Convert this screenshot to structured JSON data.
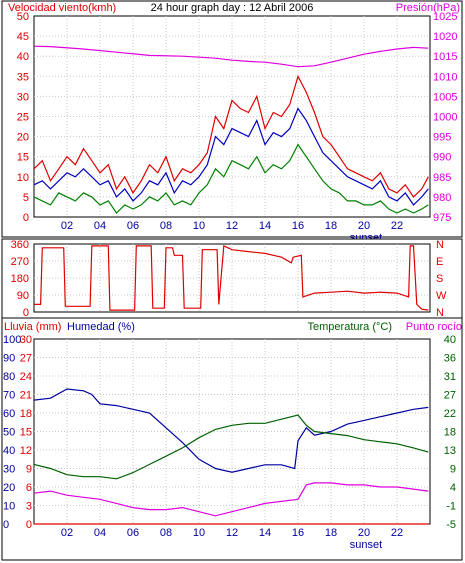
{
  "chart_data": [
    {
      "type": "line",
      "title": "24 hour graph day : 12 Abril 2006",
      "y_left_label": "Velocidad viento(kmh)",
      "y_right_label": "Presión(hPa)",
      "y_left_ticks": [
        "0",
        "5",
        "10",
        "15",
        "20",
        "25",
        "30",
        "35",
        "40",
        "45",
        "50"
      ],
      "y_right_ticks": [
        "975",
        "980",
        "985",
        "990",
        "995",
        "1000",
        "1005",
        "1010",
        "1015",
        "1020",
        "1025"
      ],
      "ylim_left": [
        0,
        50
      ],
      "ylim_right": [
        975,
        1025
      ],
      "x_ticks": [
        "02",
        "04",
        "06",
        "08",
        "10",
        "12",
        "14",
        "16",
        "18",
        "20",
        "22"
      ],
      "x_marker": "sunset",
      "xlim": [
        0,
        24
      ],
      "grid": true,
      "series": [
        {
          "axis": "right",
          "color": "#e000e0",
          "x": [
            0,
            1,
            3,
            5,
            7,
            9,
            11,
            12,
            13,
            14,
            15,
            16,
            17,
            18,
            19,
            20,
            21,
            22,
            23,
            23.9
          ],
          "values": [
            1017.5,
            1017.4,
            1016.8,
            1016,
            1015.2,
            1015,
            1014.5,
            1014,
            1013.7,
            1013.5,
            1013,
            1012.4,
            1012.6,
            1013.5,
            1014.5,
            1015.5,
            1016.2,
            1016.8,
            1017.2,
            1017
          ]
        },
        {
          "axis": "left",
          "color": "#e00000",
          "x": [
            0,
            0.5,
            1,
            1.5,
            2,
            2.5,
            3,
            3.5,
            4,
            4.5,
            5,
            5.5,
            6,
            6.5,
            7,
            7.5,
            8,
            8.5,
            9,
            9.5,
            10,
            10.5,
            11,
            11.5,
            12,
            12.5,
            13,
            13.5,
            14,
            14.5,
            15,
            15.5,
            16,
            16.5,
            17,
            17.5,
            18,
            18.5,
            19,
            19.5,
            20,
            20.5,
            21,
            21.5,
            22,
            22.5,
            23,
            23.5,
            23.9
          ],
          "values": [
            12,
            14,
            9,
            12,
            15,
            13,
            17,
            14,
            11,
            13,
            7,
            10,
            6,
            9,
            13,
            11,
            15,
            9,
            12,
            11,
            13,
            16,
            25,
            22,
            29,
            27,
            26,
            30,
            22,
            26,
            25,
            28,
            35,
            31,
            26,
            20,
            18,
            15,
            12,
            11,
            10,
            9,
            11,
            7,
            6,
            8,
            5,
            7,
            10
          ]
        },
        {
          "axis": "left",
          "color": "#0000c0",
          "x": [
            0,
            0.5,
            1,
            1.5,
            2,
            2.5,
            3,
            3.5,
            4,
            4.5,
            5,
            5.5,
            6,
            6.5,
            7,
            7.5,
            8,
            8.5,
            9,
            9.5,
            10,
            10.5,
            11,
            11.5,
            12,
            12.5,
            13,
            13.5,
            14,
            14.5,
            15,
            15.5,
            16,
            16.5,
            17,
            17.5,
            18,
            18.5,
            19,
            19.5,
            20,
            20.5,
            21,
            21.5,
            22,
            22.5,
            23,
            23.5,
            23.9
          ],
          "values": [
            8,
            9,
            7,
            9,
            11,
            10,
            12,
            10,
            8,
            9,
            5,
            7,
            4,
            6,
            9,
            8,
            11,
            6,
            9,
            8,
            10,
            13,
            20,
            18,
            22,
            21,
            20,
            24,
            18,
            21,
            20,
            22,
            27,
            24,
            20,
            16,
            14,
            12,
            10,
            9,
            8,
            7,
            9,
            5,
            4,
            6,
            3,
            5,
            7
          ]
        },
        {
          "axis": "left",
          "color": "#008000",
          "x": [
            0,
            0.5,
            1,
            1.5,
            2,
            2.5,
            3,
            3.5,
            4,
            4.5,
            5,
            5.5,
            6,
            6.5,
            7,
            7.5,
            8,
            8.5,
            9,
            9.5,
            10,
            10.5,
            11,
            11.5,
            12,
            12.5,
            13,
            13.5,
            14,
            14.5,
            15,
            15.5,
            16,
            16.5,
            17,
            17.5,
            18,
            18.5,
            19,
            19.5,
            20,
            20.5,
            21,
            21.5,
            22,
            22.5,
            23,
            23.5,
            23.9
          ],
          "values": [
            5,
            4,
            3,
            6,
            5,
            4,
            6,
            5,
            3,
            4,
            1,
            3,
            2,
            3,
            5,
            4,
            6,
            3,
            4,
            3,
            6,
            8,
            12,
            10,
            14,
            13,
            12,
            15,
            11,
            13,
            12,
            14,
            18,
            15,
            12,
            9,
            7,
            6,
            4,
            4,
            3,
            3,
            4,
            2,
            1,
            2,
            1,
            2,
            3
          ]
        }
      ]
    },
    {
      "type": "line",
      "y_left_ticks": [
        "0",
        "90",
        "180",
        "270",
        "360"
      ],
      "y_right_ticks": [
        "N",
        "W",
        "S",
        "E",
        "N"
      ],
      "ylim": [
        0,
        360
      ],
      "xlim": [
        0,
        24
      ],
      "grid": true,
      "series": [
        {
          "color": "#e00000",
          "x": [
            0,
            0.4,
            0.5,
            1.8,
            1.9,
            3.4,
            3.5,
            4.5,
            4.6,
            6.1,
            6.2,
            7.1,
            7.2,
            7.9,
            8.0,
            8.4,
            8.5,
            9.0,
            9.1,
            10.1,
            10.2,
            11.1,
            11.2,
            11.5,
            12.0,
            13.0,
            14.0,
            15.0,
            15.6,
            15.7,
            16.2,
            16.3,
            17.0,
            18.0,
            19.0,
            20.0,
            21.0,
            22.0,
            22.7,
            22.8,
            23.0,
            23.2,
            23.5,
            23.9
          ],
          "values": [
            40,
            40,
            340,
            340,
            30,
            30,
            350,
            350,
            10,
            10,
            350,
            350,
            20,
            20,
            340,
            340,
            300,
            300,
            20,
            20,
            330,
            330,
            40,
            350,
            330,
            320,
            310,
            290,
            260,
            290,
            300,
            80,
            100,
            105,
            110,
            100,
            105,
            100,
            80,
            350,
            350,
            40,
            15,
            10
          ]
        }
      ]
    },
    {
      "type": "line",
      "y_left_label": "Lluvia (mm)",
      "y_left2_label": "Humedad (%)",
      "y_right_label": "Temperatura (°C)",
      "y_right2_label": "Punto rocío",
      "y_rain_ticks": [
        "0",
        "3",
        "6",
        "9",
        "12",
        "15",
        "18",
        "21",
        "24",
        "27",
        "30"
      ],
      "y_hum_ticks": [
        "0",
        "10",
        "20",
        "30",
        "40",
        "50",
        "60",
        "70",
        "80",
        "90",
        "100"
      ],
      "y_temp_ticks": [
        "-5",
        "-1",
        "4",
        "9",
        "13",
        "18",
        "22",
        "27",
        "31",
        "36",
        "40"
      ],
      "ylim_humidity": [
        0,
        100
      ],
      "ylim_temperature": [
        -5,
        40
      ],
      "x_ticks": [
        "02",
        "04",
        "06",
        "08",
        "10",
        "12",
        "14",
        "16",
        "18",
        "20",
        "22"
      ],
      "x_marker": "sunset",
      "xlim": [
        0,
        24
      ],
      "grid": true,
      "series": [
        {
          "axis": "humidity",
          "color": "#0000a0",
          "x": [
            0,
            1,
            2,
            3,
            3.5,
            4,
            5,
            6,
            7,
            8,
            9,
            10,
            11,
            12,
            13,
            14,
            15,
            15.8,
            16,
            16.5,
            17,
            18,
            19,
            20,
            21,
            22,
            23,
            23.9
          ],
          "values": [
            67,
            68,
            73,
            72,
            70,
            65,
            64,
            62,
            60,
            52,
            44,
            35,
            30,
            28,
            30,
            32,
            32,
            30,
            45,
            52,
            48,
            50,
            54,
            56,
            58,
            60,
            62,
            63
          ]
        },
        {
          "axis": "temperature",
          "color": "#006000",
          "x": [
            0,
            1,
            2,
            3,
            4,
            5,
            6,
            7,
            8,
            9,
            10,
            11,
            12,
            13,
            14,
            15,
            16,
            16.5,
            17,
            18,
            19,
            20,
            21,
            22,
            23,
            23.9
          ],
          "values": [
            9.5,
            8.5,
            7,
            6.5,
            6.5,
            6,
            7.5,
            9.5,
            11.5,
            13.5,
            16,
            18,
            19,
            19.5,
            19.5,
            20.5,
            21.5,
            19,
            17.5,
            17,
            16.5,
            15.5,
            15,
            14.5,
            13.5,
            12.5
          ]
        },
        {
          "axis": "temperature",
          "color": "#e000e0",
          "x": [
            0,
            1,
            2,
            3,
            4,
            5,
            6,
            7,
            8,
            9,
            10,
            11,
            12,
            13,
            14,
            15,
            16,
            16.5,
            17,
            18,
            19,
            20,
            21,
            22,
            23,
            23.9
          ],
          "values": [
            2.5,
            3,
            2,
            1.5,
            1,
            0,
            -1,
            -1.5,
            -1.5,
            -1,
            -2,
            -3,
            -2,
            -1,
            0,
            0.5,
            1,
            4.5,
            5,
            5,
            4.5,
            4.5,
            4,
            4,
            3.5,
            3
          ]
        },
        {
          "axis": "humidity",
          "color": "#e00000",
          "x": [
            0,
            23.9
          ],
          "values": [
            0,
            0
          ]
        }
      ]
    }
  ]
}
